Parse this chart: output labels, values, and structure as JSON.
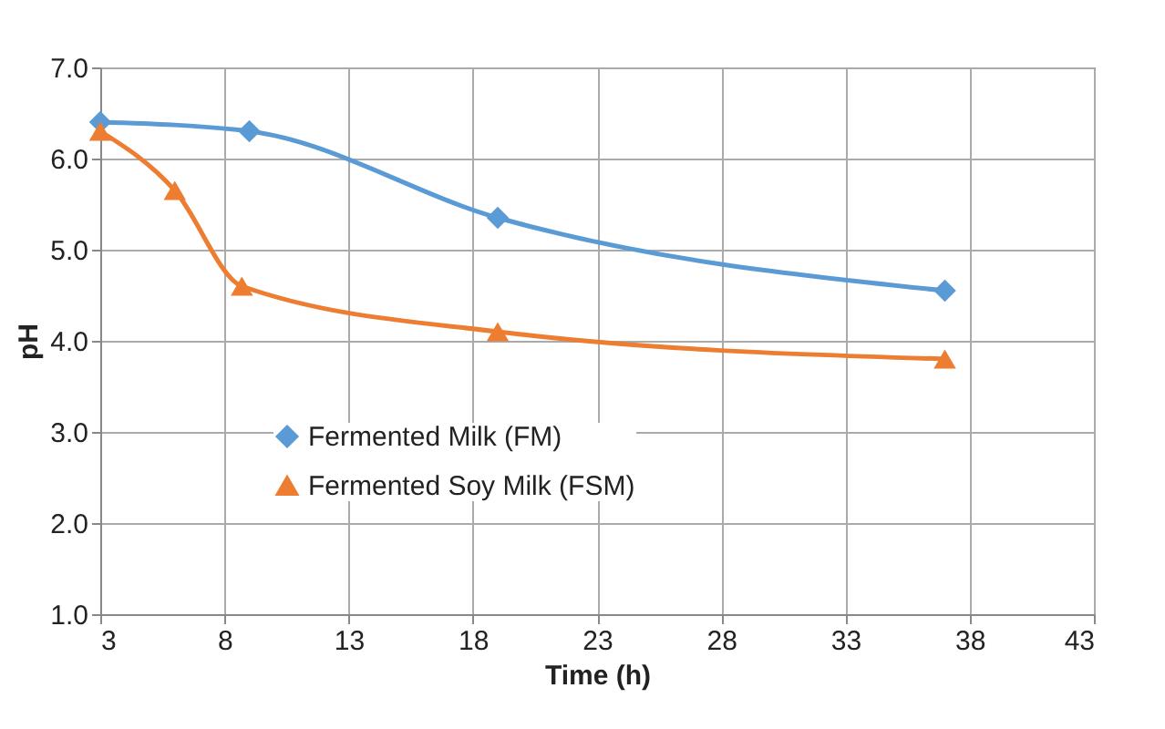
{
  "chart_data": {
    "type": "line",
    "xlabel": "Time (h)",
    "ylabel": "pH",
    "xlim": [
      3,
      43
    ],
    "xticks": [
      3,
      8,
      13,
      18,
      23,
      28,
      33,
      38,
      43
    ],
    "ylim": [
      1.0,
      7.0
    ],
    "yticks": [
      {
        "value": 1,
        "label": "1.0"
      },
      {
        "value": 2,
        "label": "2.0"
      },
      {
        "value": 3,
        "label": "3.0"
      },
      {
        "value": 4,
        "label": "4.0"
      },
      {
        "value": 5,
        "label": "5.0"
      },
      {
        "value": 6,
        "label": "6.0"
      },
      {
        "value": 7,
        "label": "7.0"
      }
    ],
    "grid": true,
    "legend": "left",
    "line_style": "solid",
    "series": [
      {
        "name": "Fermented Milk (FM)",
        "color": "#5b9bd5",
        "marker": "diamond",
        "x": [
          3,
          9,
          19,
          37
        ],
        "values": [
          6.4,
          6.3,
          5.35,
          4.55
        ]
      },
      {
        "name": "Fermented Soy Milk (FSM)",
        "color": "#ed7d31",
        "marker": "triangle",
        "x": [
          3,
          6,
          8.7,
          19,
          37
        ],
        "values": [
          6.3,
          5.65,
          4.6,
          4.1,
          3.8
        ]
      }
    ]
  }
}
